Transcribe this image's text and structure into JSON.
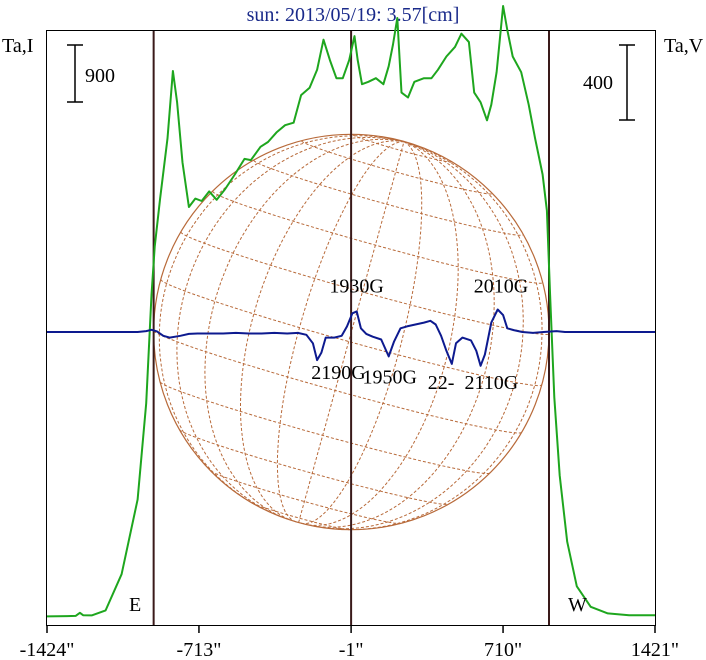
{
  "chart_data": {
    "type": "line",
    "title": "sun: 2013/05/19: 3.57[cm]",
    "ylabel_left": "Ta,I",
    "ylabel_right": "Ta,V",
    "scale_left_label": "900",
    "scale_right_label": "400",
    "xlim": [
      -1424,
      1421
    ],
    "x_ticks": [
      {
        "value": -1424,
        "label": "-1424\""
      },
      {
        "value": -713,
        "label": "-713\""
      },
      {
        "value": -1,
        "label": "-1\""
      },
      {
        "value": 710,
        "label": "710\""
      },
      {
        "value": 1421,
        "label": "1421\""
      }
    ],
    "vertical_lines": [
      -925,
      -1,
      925
    ],
    "limb_labels": {
      "east": "E",
      "west": "W"
    },
    "solar_disk": {
      "radius": 925,
      "color": "#b86a3a"
    },
    "colors": {
      "intensity": "#1ea61e",
      "polarization": "#0d1a8f",
      "markers": "#3a1a1a",
      "title": "#1a2a8a"
    },
    "series": [
      {
        "name": "I",
        "color": "#1ea61e",
        "y_units": "Ta,I (900 per scale bar)",
        "points": [
          [
            -1424,
            30
          ],
          [
            -1330,
            32
          ],
          [
            -1290,
            34
          ],
          [
            -1270,
            60
          ],
          [
            -1255,
            40
          ],
          [
            -1215,
            38
          ],
          [
            -1150,
            80
          ],
          [
            -1075,
            380
          ],
          [
            -1000,
            1000
          ],
          [
            -960,
            1800
          ],
          [
            -935,
            2700
          ],
          [
            -920,
            3100
          ],
          [
            -895,
            3500
          ],
          [
            -860,
            4000
          ],
          [
            -835,
            4560
          ],
          [
            -815,
            4300
          ],
          [
            -790,
            3800
          ],
          [
            -760,
            3430
          ],
          [
            -730,
            3500
          ],
          [
            -700,
            3480
          ],
          [
            -665,
            3560
          ],
          [
            -630,
            3490
          ],
          [
            -590,
            3580
          ],
          [
            -545,
            3700
          ],
          [
            -500,
            3830
          ],
          [
            -470,
            3820
          ],
          [
            -425,
            3930
          ],
          [
            -390,
            3970
          ],
          [
            -350,
            4050
          ],
          [
            -310,
            4110
          ],
          [
            -270,
            4130
          ],
          [
            -235,
            4360
          ],
          [
            -195,
            4420
          ],
          [
            -160,
            4570
          ],
          [
            -130,
            4820
          ],
          [
            -100,
            4650
          ],
          [
            -70,
            4500
          ],
          [
            -40,
            4500
          ],
          [
            -10,
            4650
          ],
          [
            15,
            4850
          ],
          [
            30,
            4650
          ],
          [
            50,
            4450
          ],
          [
            80,
            4470
          ],
          [
            115,
            4500
          ],
          [
            150,
            4450
          ],
          [
            175,
            4600
          ],
          [
            195,
            4780
          ],
          [
            215,
            5000
          ],
          [
            235,
            4380
          ],
          [
            265,
            4340
          ],
          [
            295,
            4470
          ],
          [
            340,
            4500
          ],
          [
            375,
            4500
          ],
          [
            405,
            4570
          ],
          [
            445,
            4680
          ],
          [
            485,
            4760
          ],
          [
            515,
            4870
          ],
          [
            550,
            4800
          ],
          [
            575,
            4380
          ],
          [
            605,
            4300
          ],
          [
            635,
            4150
          ],
          [
            655,
            4280
          ],
          [
            680,
            4550
          ],
          [
            710,
            5100
          ],
          [
            730,
            4900
          ],
          [
            755,
            4680
          ],
          [
            795,
            4550
          ],
          [
            830,
            4280
          ],
          [
            860,
            4000
          ],
          [
            895,
            3700
          ],
          [
            915,
            3400
          ],
          [
            930,
            2700
          ],
          [
            950,
            1850
          ],
          [
            975,
            1200
          ],
          [
            1010,
            650
          ],
          [
            1055,
            280
          ],
          [
            1120,
            110
          ],
          [
            1200,
            55
          ],
          [
            1300,
            40
          ],
          [
            1421,
            40
          ]
        ]
      },
      {
        "name": "V",
        "color": "#0d1a8f",
        "y_units": "Ta,V (400 per scale bar)",
        "points": [
          [
            -1424,
            0
          ],
          [
            -1000,
            0
          ],
          [
            -960,
            5
          ],
          [
            -935,
            12
          ],
          [
            -910,
            4
          ],
          [
            -880,
            -20
          ],
          [
            -850,
            -30
          ],
          [
            -800,
            -20
          ],
          [
            -760,
            -10
          ],
          [
            -720,
            -8
          ],
          [
            -660,
            -8
          ],
          [
            -600,
            -8
          ],
          [
            -540,
            -5
          ],
          [
            -480,
            -8
          ],
          [
            -420,
            -8
          ],
          [
            -360,
            -5
          ],
          [
            -300,
            -8
          ],
          [
            -250,
            -5
          ],
          [
            -210,
            -15
          ],
          [
            -180,
            -60
          ],
          [
            -160,
            -150
          ],
          [
            -140,
            -110
          ],
          [
            -120,
            -30
          ],
          [
            -80,
            -30
          ],
          [
            -45,
            -20
          ],
          [
            -20,
            30
          ],
          [
            5,
            100
          ],
          [
            25,
            110
          ],
          [
            45,
            20
          ],
          [
            70,
            -10
          ],
          [
            100,
            -25
          ],
          [
            140,
            -40
          ],
          [
            175,
            -130
          ],
          [
            200,
            -50
          ],
          [
            230,
            20
          ],
          [
            260,
            30
          ],
          [
            300,
            40
          ],
          [
            340,
            50
          ],
          [
            370,
            60
          ],
          [
            395,
            40
          ],
          [
            420,
            -20
          ],
          [
            445,
            -100
          ],
          [
            470,
            -170
          ],
          [
            490,
            -60
          ],
          [
            520,
            -30
          ],
          [
            560,
            -45
          ],
          [
            585,
            -100
          ],
          [
            605,
            -180
          ],
          [
            625,
            -120
          ],
          [
            655,
            50
          ],
          [
            685,
            120
          ],
          [
            710,
            90
          ],
          [
            730,
            20
          ],
          [
            760,
            10
          ],
          [
            800,
            0
          ],
          [
            850,
            -5
          ],
          [
            900,
            0
          ],
          [
            960,
            5
          ],
          [
            1000,
            0
          ],
          [
            1421,
            0
          ]
        ]
      }
    ],
    "annotations": [
      {
        "text": "1930G",
        "x": 25,
        "y": 210
      },
      {
        "text": "2010G",
        "x": 700,
        "y": 210
      },
      {
        "text": "2190G",
        "x": -60,
        "y": -250
      },
      {
        "text": "1950G",
        "x": 180,
        "y": -275
      },
      {
        "text": "22-",
        "x": 420,
        "y": -305
      },
      {
        "text": "2110G",
        "x": 655,
        "y": -305
      }
    ]
  }
}
